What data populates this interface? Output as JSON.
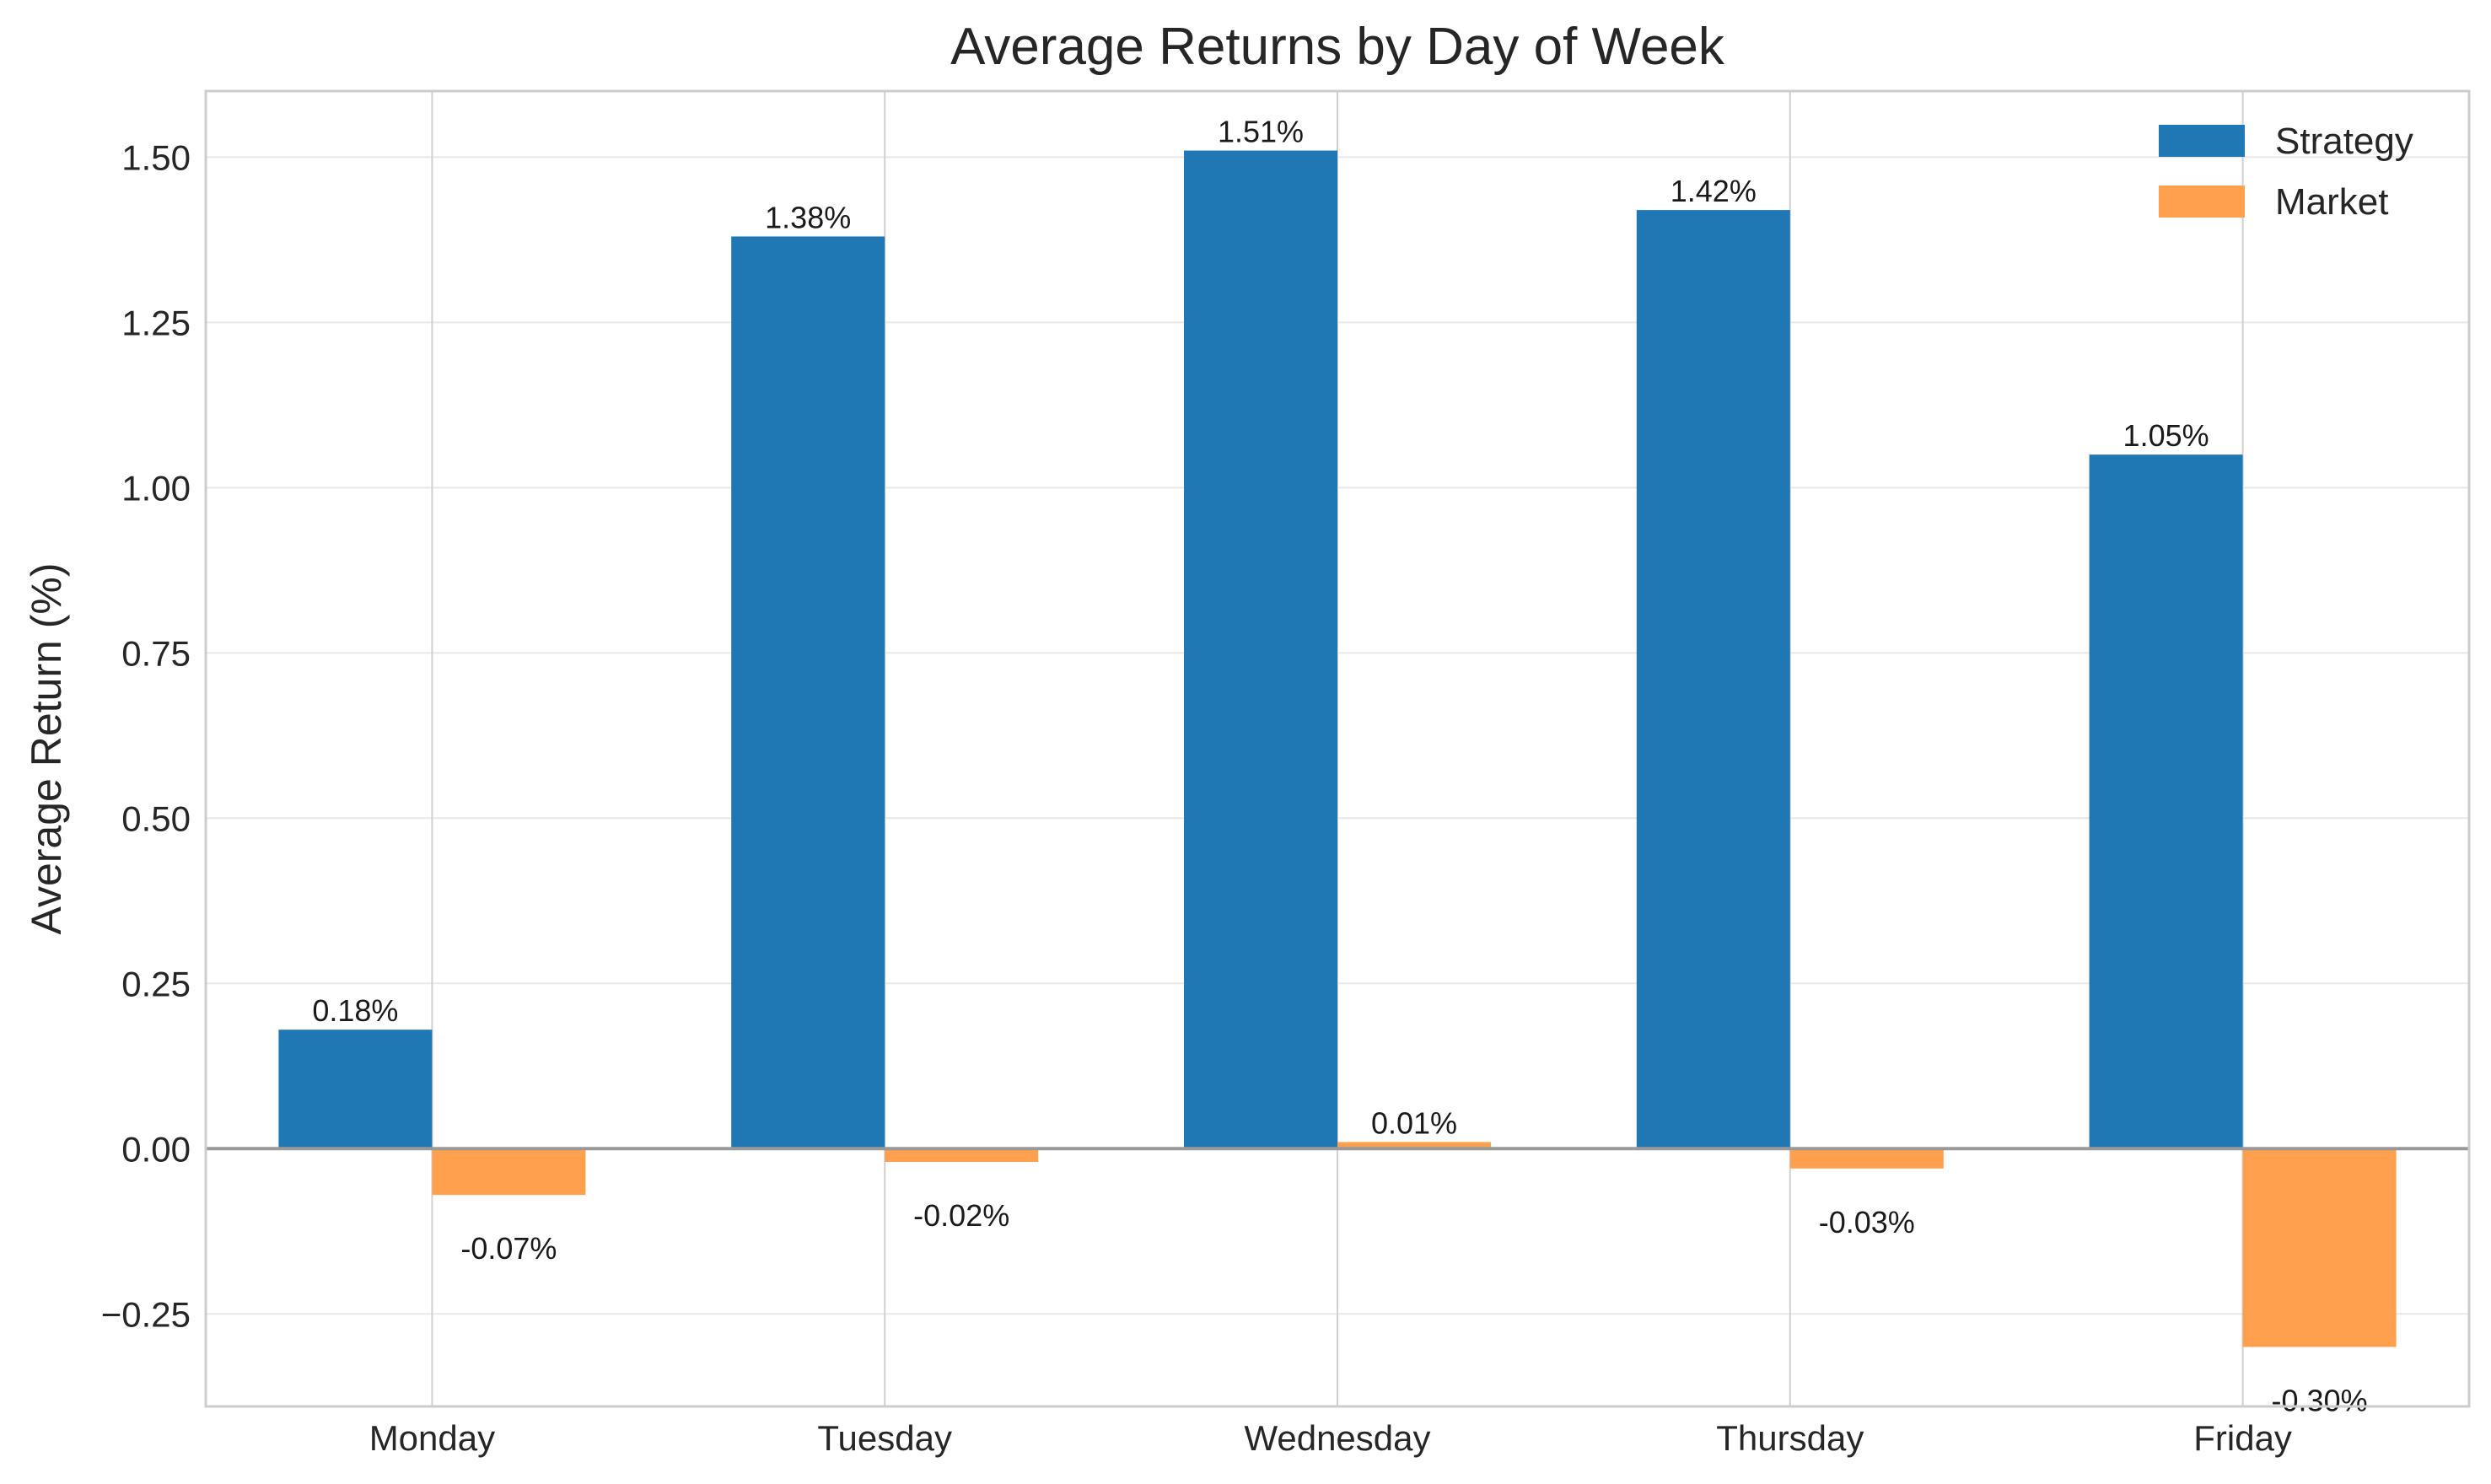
{
  "chart_data": {
    "type": "bar",
    "title": "Average Returns by Day of Week",
    "xlabel": "",
    "ylabel": "Average Return (%)",
    "categories": [
      "Monday",
      "Tuesday",
      "Wednesday",
      "Thursday",
      "Friday"
    ],
    "series": [
      {
        "name": "Strategy",
        "color": "#1f77b4",
        "values": [
          0.18,
          1.38,
          1.51,
          1.42,
          1.05
        ],
        "labels": [
          "0.18%",
          "1.38%",
          "1.51%",
          "1.42%",
          "1.05%"
        ]
      },
      {
        "name": "Market",
        "color": "#ffa04f",
        "values": [
          -0.07,
          -0.02,
          0.01,
          -0.03,
          -0.3
        ],
        "labels": [
          "-0.07%",
          "-0.02%",
          "0.01%",
          "-0.03%",
          "-0.30%"
        ]
      }
    ],
    "ylim": [
      -0.39,
      1.6
    ],
    "yticks": [
      -0.25,
      0.0,
      0.25,
      0.5,
      0.75,
      1.0,
      1.25,
      1.5
    ],
    "ytick_labels": [
      "−0.25",
      "0.00",
      "0.25",
      "0.50",
      "0.75",
      "1.00",
      "1.25",
      "1.50"
    ],
    "grid": true,
    "zero_line": true,
    "legend": "top-right"
  }
}
